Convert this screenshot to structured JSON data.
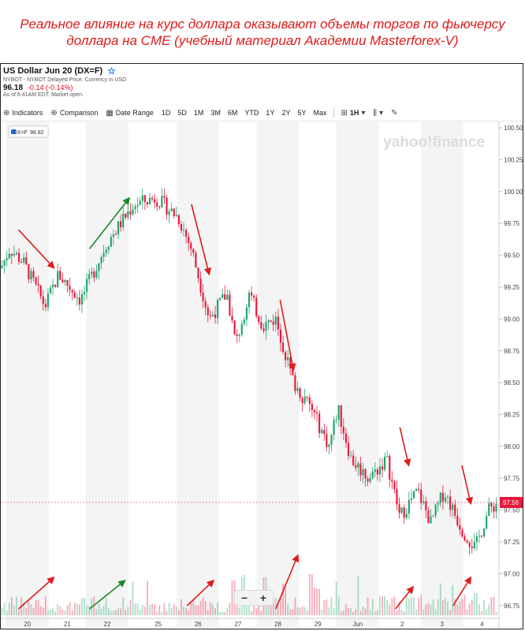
{
  "caption": {
    "line1": "Реальное влияние на курс доллара оказывают объемы торгов по фьючерсу",
    "line2": "доллара на CME (учебный материал Академии Masterforex-V)"
  },
  "header": {
    "title": "US Dollar Jun 20 (DX=F)",
    "star_icon": "star-icon",
    "source": "NYBOT - NYBOT Delayed Price. Currency in USD",
    "price": "96.18",
    "change": "-0.14 (-0.14%)",
    "asof": "As of 6:41AM EDT. Market open."
  },
  "toolbar": {
    "indicators": "Indicators",
    "comparison": "Comparison",
    "date_range": "Date Range",
    "ranges": [
      "1D",
      "5D",
      "1M",
      "3M",
      "6M",
      "YTD",
      "1Y",
      "2Y",
      "5Y",
      "Max"
    ],
    "interval": "1H"
  },
  "colors": {
    "up": "#1ea46b",
    "down": "#e8193c",
    "arrow_red": "#e01b1b",
    "arrow_green": "#1a8a2a",
    "band": "#f4f4f4"
  },
  "chart_data": {
    "type": "candlestick",
    "watermark": "yahoo!finance",
    "legend": "DX=F",
    "legend_value": "98.82",
    "last_price": "97.56",
    "ylim": [
      96.65,
      100.55
    ],
    "y_ticks": [
      "100.50",
      "100.25",
      "100.00",
      "99.75",
      "99.50",
      "99.25",
      "99.00",
      "98.75",
      "98.50",
      "98.25",
      "98.00",
      "97.75",
      "97.50",
      "97.25",
      "97.00",
      "96.75"
    ],
    "x_labels": [
      "20",
      "21",
      "22",
      "25",
      "26",
      "27",
      "28",
      "29",
      "Jun",
      "2",
      "3",
      "4"
    ],
    "x_label_pos": [
      0.06,
      0.15,
      0.24,
      0.355,
      0.445,
      0.535,
      0.625,
      0.715,
      0.805,
      0.905,
      0.995,
      1.085
    ],
    "path_anchors": [
      [
        0,
        99.4
      ],
      [
        0.02,
        99.55
      ],
      [
        0.05,
        99.45
      ],
      [
        0.1,
        99.1
      ],
      [
        0.13,
        99.35
      ],
      [
        0.18,
        99.15
      ],
      [
        0.24,
        99.6
      ],
      [
        0.3,
        99.9
      ],
      [
        0.35,
        99.95
      ],
      [
        0.4,
        99.8
      ],
      [
        0.43,
        99.55
      ],
      [
        0.47,
        99.0
      ],
      [
        0.51,
        99.2
      ],
      [
        0.53,
        98.8
      ],
      [
        0.56,
        99.2
      ],
      [
        0.59,
        98.95
      ],
      [
        0.62,
        99.0
      ],
      [
        0.66,
        98.5
      ],
      [
        0.7,
        98.3
      ],
      [
        0.74,
        98.0
      ],
      [
        0.76,
        98.3
      ],
      [
        0.79,
        97.9
      ],
      [
        0.83,
        97.75
      ],
      [
        0.87,
        97.9
      ],
      [
        0.9,
        97.45
      ],
      [
        0.94,
        97.65
      ],
      [
        0.97,
        97.4
      ],
      [
        1.0,
        97.65
      ],
      [
        1.04,
        97.35
      ],
      [
        1.07,
        97.2
      ],
      [
        1.1,
        97.5
      ],
      [
        1.12,
        97.56
      ]
    ],
    "volume_spikes": [
      [
        0.525,
        0.55
      ],
      [
        0.595,
        0.6
      ],
      [
        0.64,
        0.5
      ],
      [
        0.7,
        0.65
      ],
      [
        0.715,
        0.42
      ],
      [
        0.86,
        0.3
      ],
      [
        1.07,
        0.35
      ]
    ],
    "annotations": [
      {
        "type": "down",
        "from": [
          0.04,
          99.7
        ],
        "to": [
          0.12,
          99.4
        ]
      },
      {
        "type": "up",
        "from": [
          0.2,
          99.55
        ],
        "to": [
          0.29,
          99.95
        ]
      },
      {
        "type": "down",
        "from": [
          0.43,
          99.9
        ],
        "to": [
          0.47,
          99.35
        ]
      },
      {
        "type": "down",
        "from": [
          0.63,
          99.15
        ],
        "to": [
          0.66,
          98.6
        ]
      },
      {
        "type": "down",
        "from": [
          0.9,
          98.15
        ],
        "to": [
          0.92,
          97.85
        ]
      },
      {
        "type": "down",
        "from": [
          1.04,
          97.85
        ],
        "to": [
          1.06,
          97.55
        ]
      },
      {
        "type": "up-vol",
        "from": [
          0.04,
          0.1
        ],
        "to": [
          0.12,
          0.6
        ]
      },
      {
        "type": "up-vol-green",
        "from": [
          0.2,
          0.1
        ],
        "to": [
          0.28,
          0.55
        ]
      },
      {
        "type": "up-vol",
        "from": [
          0.42,
          0.15
        ],
        "to": [
          0.48,
          0.55
        ]
      },
      {
        "type": "up-vol",
        "from": [
          0.62,
          0.1
        ],
        "to": [
          0.67,
          0.95
        ]
      },
      {
        "type": "up-vol",
        "from": [
          0.89,
          0.1
        ],
        "to": [
          0.93,
          0.45
        ]
      },
      {
        "type": "up-vol",
        "from": [
          1.02,
          0.15
        ],
        "to": [
          1.06,
          0.6
        ]
      }
    ]
  }
}
